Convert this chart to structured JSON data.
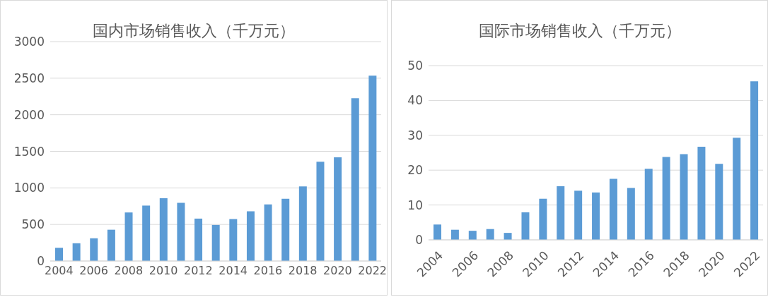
{
  "chart_data": [
    {
      "type": "bar",
      "title": "国内市场销售收入（千万元）",
      "categories": [
        "2004",
        null,
        "2006",
        null,
        "2008",
        null,
        "2010",
        null,
        "2012",
        null,
        "2014",
        null,
        "2016",
        null,
        "2018",
        null,
        "2020",
        null,
        "2022"
      ],
      "values": [
        181,
        243,
        311,
        428,
        664,
        758,
        859,
        797,
        580,
        493,
        574,
        680,
        774,
        852,
        1021,
        1358,
        1419,
        2226,
        2534
      ],
      "color": "#5b9bd5",
      "ylim": [
        0,
        3000
      ],
      "yticks": [
        0,
        500,
        1000,
        1500,
        2000,
        2500,
        3000
      ],
      "grid": "y"
    },
    {
      "type": "bar",
      "title": "国际市场销售收入（千万元）",
      "categories": [
        "2004",
        null,
        "2006",
        null,
        "2008",
        null,
        "2010",
        null,
        "2012",
        null,
        "2014",
        null,
        "2016",
        null,
        "2018",
        null,
        "2020",
        null,
        "2022"
      ],
      "values": [
        4.4,
        2.9,
        2.6,
        3.1,
        2.0,
        7.9,
        11.8,
        15.4,
        14.1,
        13.6,
        17.5,
        14.9,
        20.4,
        23.8,
        24.6,
        26.7,
        21.8,
        29.3,
        45.5
      ],
      "color": "#5b9bd5",
      "ylim": [
        0,
        50
      ],
      "yticks": [
        0,
        10,
        20,
        30,
        40,
        50
      ],
      "grid": "y"
    }
  ]
}
